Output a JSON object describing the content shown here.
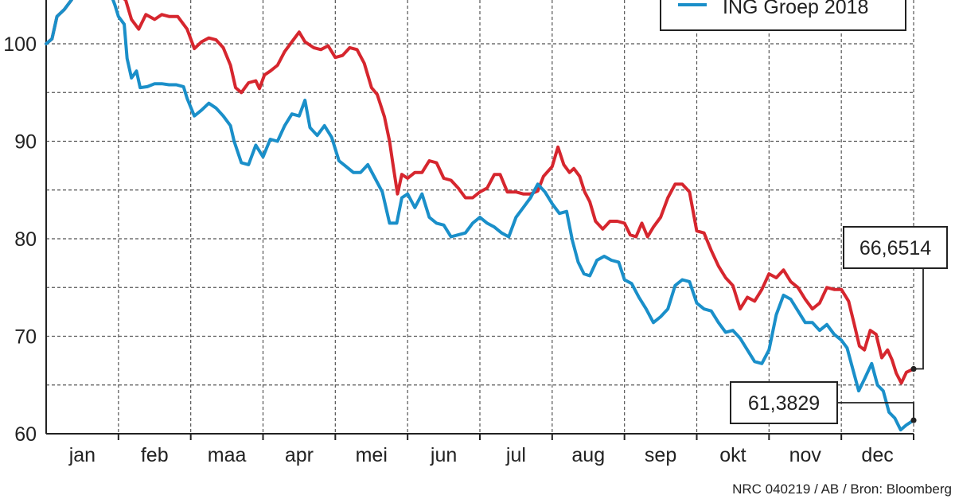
{
  "chart_data": {
    "type": "line",
    "title": "",
    "xlabel": "",
    "ylabel": "",
    "ylim": [
      60,
      105
    ],
    "yticks": [
      60,
      70,
      80,
      90,
      100
    ],
    "ytick_labels": [
      "60",
      "70",
      "80",
      "90",
      "100"
    ],
    "xlim": [
      0,
      12
    ],
    "categories": [
      "jan",
      "feb",
      "maa",
      "apr",
      "mei",
      "jun",
      "jul",
      "aug",
      "sep",
      "okt",
      "nov",
      "dec"
    ],
    "grid": true,
    "legend_position": "top-right",
    "series": [
      {
        "name": "",
        "color": "#d6262e",
        "points": [
          [
            0.0,
            100.0
          ],
          [
            0.08,
            100.5
          ],
          [
            0.15,
            102.8
          ],
          [
            0.25,
            103.5
          ],
          [
            0.35,
            104.5
          ],
          [
            0.5,
            106.5
          ],
          [
            0.7,
            107.5
          ],
          [
            0.85,
            106.0
          ],
          [
            1.0,
            105.0
          ],
          [
            1.1,
            104.5
          ],
          [
            1.18,
            102.5
          ],
          [
            1.28,
            101.5
          ],
          [
            1.38,
            103.0
          ],
          [
            1.5,
            102.5
          ],
          [
            1.6,
            103.0
          ],
          [
            1.7,
            102.8
          ],
          [
            1.82,
            102.8
          ],
          [
            1.95,
            101.5
          ],
          [
            2.05,
            99.5
          ],
          [
            2.15,
            100.2
          ],
          [
            2.25,
            100.6
          ],
          [
            2.35,
            100.4
          ],
          [
            2.45,
            99.6
          ],
          [
            2.55,
            97.8
          ],
          [
            2.62,
            95.5
          ],
          [
            2.7,
            95.0
          ],
          [
            2.8,
            96.0
          ],
          [
            2.9,
            96.2
          ],
          [
            2.95,
            95.4
          ],
          [
            3.02,
            96.8
          ],
          [
            3.1,
            97.2
          ],
          [
            3.2,
            97.8
          ],
          [
            3.3,
            99.2
          ],
          [
            3.4,
            100.2
          ],
          [
            3.5,
            101.2
          ],
          [
            3.58,
            100.2
          ],
          [
            3.7,
            99.6
          ],
          [
            3.8,
            99.4
          ],
          [
            3.9,
            99.8
          ],
          [
            4.0,
            98.6
          ],
          [
            4.1,
            98.8
          ],
          [
            4.2,
            99.6
          ],
          [
            4.3,
            99.4
          ],
          [
            4.4,
            98.0
          ],
          [
            4.5,
            95.5
          ],
          [
            4.58,
            94.8
          ],
          [
            4.68,
            92.5
          ],
          [
            4.75,
            90.0
          ],
          [
            4.8,
            87.5
          ],
          [
            4.86,
            84.6
          ],
          [
            4.92,
            86.6
          ],
          [
            5.0,
            86.2
          ],
          [
            5.1,
            86.8
          ],
          [
            5.2,
            86.8
          ],
          [
            5.3,
            88.0
          ],
          [
            5.4,
            87.8
          ],
          [
            5.5,
            86.2
          ],
          [
            5.6,
            86.0
          ],
          [
            5.7,
            85.2
          ],
          [
            5.8,
            84.2
          ],
          [
            5.9,
            84.2
          ],
          [
            6.0,
            84.8
          ],
          [
            6.1,
            85.2
          ],
          [
            6.2,
            86.6
          ],
          [
            6.28,
            86.6
          ],
          [
            6.38,
            84.8
          ],
          [
            6.5,
            84.8
          ],
          [
            6.6,
            84.6
          ],
          [
            6.7,
            84.6
          ],
          [
            6.8,
            84.9
          ],
          [
            6.88,
            86.4
          ],
          [
            7.0,
            87.4
          ],
          [
            7.08,
            89.4
          ],
          [
            7.16,
            87.6
          ],
          [
            7.24,
            86.8
          ],
          [
            7.3,
            87.2
          ],
          [
            7.38,
            86.4
          ],
          [
            7.45,
            84.8
          ],
          [
            7.52,
            83.8
          ],
          [
            7.6,
            81.8
          ],
          [
            7.7,
            81.0
          ],
          [
            7.8,
            81.8
          ],
          [
            7.9,
            81.8
          ],
          [
            8.0,
            81.6
          ],
          [
            8.08,
            80.4
          ],
          [
            8.16,
            80.2
          ],
          [
            8.24,
            81.6
          ],
          [
            8.32,
            80.2
          ],
          [
            8.4,
            81.2
          ],
          [
            8.5,
            82.2
          ],
          [
            8.6,
            84.2
          ],
          [
            8.7,
            85.6
          ],
          [
            8.8,
            85.6
          ],
          [
            8.9,
            84.8
          ],
          [
            9.0,
            80.8
          ],
          [
            9.1,
            80.6
          ],
          [
            9.2,
            78.8
          ],
          [
            9.3,
            77.2
          ],
          [
            9.4,
            76.0
          ],
          [
            9.5,
            75.2
          ],
          [
            9.6,
            72.8
          ],
          [
            9.7,
            74.0
          ],
          [
            9.8,
            73.6
          ],
          [
            9.9,
            74.8
          ],
          [
            10.0,
            76.4
          ],
          [
            10.1,
            76.0
          ],
          [
            10.2,
            76.8
          ],
          [
            10.3,
            75.6
          ],
          [
            10.4,
            75.0
          ],
          [
            10.5,
            73.8
          ],
          [
            10.6,
            72.8
          ],
          [
            10.7,
            73.4
          ],
          [
            10.8,
            75.0
          ],
          [
            10.9,
            74.8
          ],
          [
            11.0,
            74.8
          ],
          [
            11.1,
            73.6
          ],
          [
            11.18,
            71.2
          ],
          [
            11.25,
            69.0
          ],
          [
            11.32,
            68.6
          ],
          [
            11.4,
            70.6
          ],
          [
            11.48,
            70.2
          ],
          [
            11.56,
            67.8
          ],
          [
            11.64,
            68.6
          ],
          [
            11.7,
            67.6
          ],
          [
            11.76,
            66.2
          ],
          [
            11.83,
            65.2
          ],
          [
            11.9,
            66.3
          ],
          [
            12.0,
            66.6514
          ]
        ]
      },
      {
        "name": "ING Groep 2018",
        "color": "#1a8fc9",
        "points": [
          [
            0.0,
            100.0
          ],
          [
            0.08,
            100.5
          ],
          [
            0.15,
            102.8
          ],
          [
            0.25,
            103.5
          ],
          [
            0.35,
            104.5
          ],
          [
            0.5,
            106.5
          ],
          [
            0.7,
            107.5
          ],
          [
            0.85,
            106.0
          ],
          [
            0.95,
            104.0
          ],
          [
            1.0,
            102.8
          ],
          [
            1.08,
            102.0
          ],
          [
            1.12,
            98.5
          ],
          [
            1.18,
            96.5
          ],
          [
            1.25,
            97.2
          ],
          [
            1.3,
            95.5
          ],
          [
            1.4,
            95.6
          ],
          [
            1.5,
            95.9
          ],
          [
            1.6,
            95.9
          ],
          [
            1.7,
            95.8
          ],
          [
            1.8,
            95.8
          ],
          [
            1.9,
            95.6
          ],
          [
            1.95,
            94.4
          ],
          [
            2.05,
            92.6
          ],
          [
            2.15,
            93.2
          ],
          [
            2.25,
            93.9
          ],
          [
            2.35,
            93.4
          ],
          [
            2.45,
            92.6
          ],
          [
            2.55,
            91.6
          ],
          [
            2.6,
            90.0
          ],
          [
            2.7,
            87.8
          ],
          [
            2.8,
            87.6
          ],
          [
            2.9,
            89.6
          ],
          [
            3.0,
            88.4
          ],
          [
            3.1,
            90.2
          ],
          [
            3.2,
            90.0
          ],
          [
            3.3,
            91.6
          ],
          [
            3.4,
            92.8
          ],
          [
            3.5,
            92.6
          ],
          [
            3.58,
            94.2
          ],
          [
            3.65,
            91.4
          ],
          [
            3.75,
            90.6
          ],
          [
            3.85,
            91.6
          ],
          [
            3.95,
            90.4
          ],
          [
            4.05,
            88.0
          ],
          [
            4.15,
            87.4
          ],
          [
            4.25,
            86.8
          ],
          [
            4.35,
            86.8
          ],
          [
            4.45,
            87.6
          ],
          [
            4.55,
            86.2
          ],
          [
            4.65,
            84.8
          ],
          [
            4.75,
            81.6
          ],
          [
            4.85,
            81.6
          ],
          [
            4.92,
            84.2
          ],
          [
            5.0,
            84.6
          ],
          [
            5.1,
            83.2
          ],
          [
            5.2,
            84.6
          ],
          [
            5.3,
            82.2
          ],
          [
            5.4,
            81.6
          ],
          [
            5.5,
            81.4
          ],
          [
            5.6,
            80.2
          ],
          [
            5.7,
            80.4
          ],
          [
            5.8,
            80.6
          ],
          [
            5.9,
            81.6
          ],
          [
            6.0,
            82.2
          ],
          [
            6.1,
            81.6
          ],
          [
            6.2,
            81.2
          ],
          [
            6.3,
            80.6
          ],
          [
            6.4,
            80.2
          ],
          [
            6.5,
            82.2
          ],
          [
            6.6,
            83.2
          ],
          [
            6.7,
            84.2
          ],
          [
            6.8,
            85.6
          ],
          [
            6.9,
            84.8
          ],
          [
            7.0,
            83.6
          ],
          [
            7.1,
            82.6
          ],
          [
            7.2,
            82.8
          ],
          [
            7.28,
            79.8
          ],
          [
            7.36,
            77.6
          ],
          [
            7.44,
            76.4
          ],
          [
            7.52,
            76.2
          ],
          [
            7.62,
            77.8
          ],
          [
            7.72,
            78.2
          ],
          [
            7.82,
            77.8
          ],
          [
            7.92,
            77.6
          ],
          [
            8.0,
            75.8
          ],
          [
            8.1,
            75.4
          ],
          [
            8.2,
            74.0
          ],
          [
            8.3,
            72.8
          ],
          [
            8.4,
            71.4
          ],
          [
            8.5,
            72.0
          ],
          [
            8.6,
            72.8
          ],
          [
            8.7,
            75.2
          ],
          [
            8.8,
            75.8
          ],
          [
            8.9,
            75.6
          ],
          [
            9.0,
            73.4
          ],
          [
            9.1,
            72.8
          ],
          [
            9.2,
            72.6
          ],
          [
            9.3,
            71.4
          ],
          [
            9.4,
            70.4
          ],
          [
            9.5,
            70.6
          ],
          [
            9.6,
            69.8
          ],
          [
            9.7,
            68.6
          ],
          [
            9.8,
            67.4
          ],
          [
            9.9,
            67.2
          ],
          [
            10.0,
            68.6
          ],
          [
            10.1,
            72.2
          ],
          [
            10.2,
            74.2
          ],
          [
            10.3,
            73.8
          ],
          [
            10.4,
            72.6
          ],
          [
            10.5,
            71.4
          ],
          [
            10.6,
            71.4
          ],
          [
            10.7,
            70.6
          ],
          [
            10.8,
            71.2
          ],
          [
            10.9,
            70.2
          ],
          [
            11.0,
            69.6
          ],
          [
            11.08,
            68.8
          ],
          [
            11.16,
            66.6
          ],
          [
            11.24,
            64.4
          ],
          [
            11.32,
            65.6
          ],
          [
            11.42,
            67.2
          ],
          [
            11.5,
            65.0
          ],
          [
            11.58,
            64.4
          ],
          [
            11.66,
            62.2
          ],
          [
            11.74,
            61.6
          ],
          [
            11.82,
            60.4
          ],
          [
            11.9,
            60.9
          ],
          [
            12.0,
            61.3829
          ]
        ]
      }
    ],
    "end_labels": [
      "66,6514",
      "61,3829"
    ]
  },
  "credit": "NRC 040219 / AB / Bron: Bloomberg",
  "colors": {
    "grid": "#555555",
    "axis": "#222222",
    "red_series": "#d6262e",
    "blue_series": "#1a8fc9"
  }
}
